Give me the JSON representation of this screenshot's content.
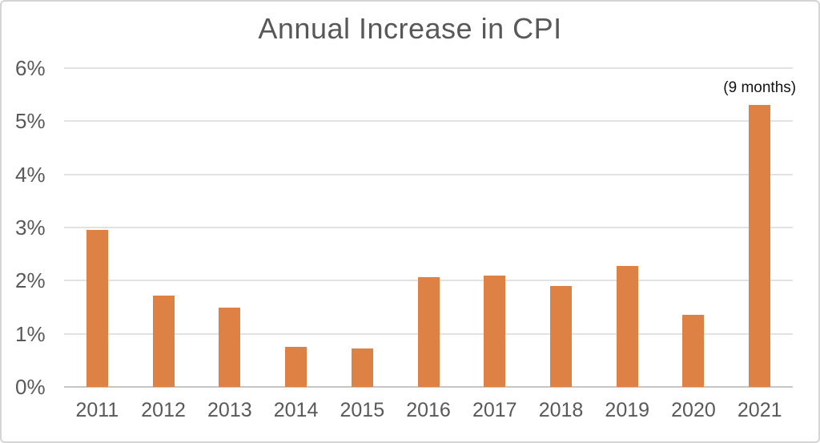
{
  "chart_data": {
    "type": "bar",
    "title": "Annual Increase in CPI",
    "categories": [
      "2011",
      "2012",
      "2013",
      "2014",
      "2015",
      "2016",
      "2017",
      "2018",
      "2019",
      "2020",
      "2021"
    ],
    "values": [
      2.95,
      1.72,
      1.5,
      0.75,
      0.72,
      2.06,
      2.1,
      1.9,
      2.27,
      1.36,
      5.31
    ],
    "xlabel": "",
    "ylabel": "",
    "yticks": [
      "0%",
      "1%",
      "2%",
      "3%",
      "4%",
      "5%",
      "6%"
    ],
    "ylim": [
      0,
      6
    ],
    "grid": true,
    "legend": false,
    "bar_color": "#DD8144",
    "annotation": {
      "text": "(9 months)",
      "category": "2021"
    }
  },
  "colors": {
    "background": "#FFFFFF",
    "frame_border": "#D5D5D5",
    "title_text": "#58585A",
    "tick_text": "#595959",
    "annotation_text": "#131313",
    "gridline": "#E2E2E2",
    "axis_line": "#C6C6C6",
    "bar": "#DD8144"
  }
}
